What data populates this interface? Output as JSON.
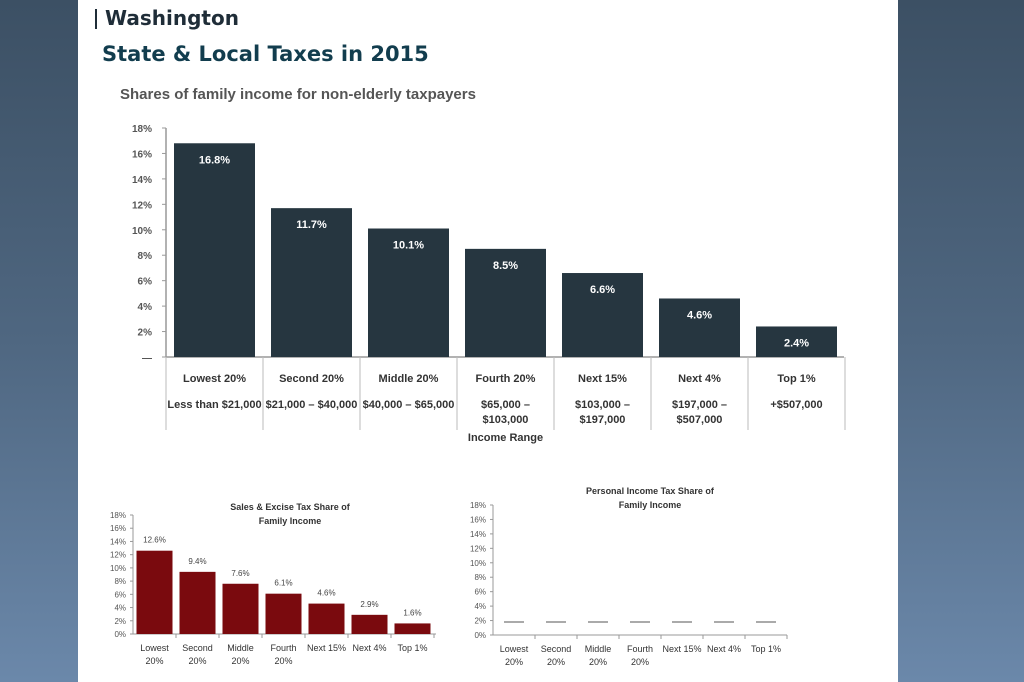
{
  "header": {
    "state": "Washington",
    "title": "State & Local Taxes in 2015"
  },
  "colors": {
    "main_bar": "#263640",
    "sales_bar": "#7a0a0e",
    "dash": "#555555",
    "axis": "#999999"
  },
  "chart_data": [
    {
      "type": "bar",
      "title": "Shares of family income for non-elderly taxpayers",
      "categories": [
        "Lowest 20%",
        "Second 20%",
        "Middle 20%",
        "Fourth 20%",
        "Next 15%",
        "Next 4%",
        "Top 1%"
      ],
      "income_ranges": [
        "Less than $21,000",
        "$21,000 – $40,000",
        "$40,000 – $65,000",
        "$65,000 – $103,000",
        "$103,000 – $197,000",
        "$197,000 – $507,000",
        "+$507,000"
      ],
      "income_range_label": "Income Range",
      "values": [
        16.8,
        11.7,
        10.1,
        8.5,
        6.6,
        4.6,
        2.4
      ],
      "data_labels": [
        "16.8%",
        "11.7%",
        "10.1%",
        "8.5%",
        "6.6%",
        "4.6%",
        "2.4%"
      ],
      "ylim": [
        0,
        18
      ],
      "yticks": [
        "—",
        "2%",
        "4%",
        "6%",
        "8%",
        "10%",
        "12%",
        "14%",
        "16%",
        "18%"
      ],
      "grid": false
    },
    {
      "type": "bar",
      "title": "Sales & Excise Tax Share of Family Income",
      "categories": [
        "Lowest 20%",
        "Second 20%",
        "Middle 20%",
        "Fourth 20%",
        "Next 15%",
        "Next 4%",
        "Top 1%"
      ],
      "values": [
        12.6,
        9.4,
        7.6,
        6.1,
        4.6,
        2.9,
        1.6
      ],
      "data_labels": [
        "12.6%",
        "9.4%",
        "7.6%",
        "6.1%",
        "4.6%",
        "2.9%",
        "1.6%"
      ],
      "ylim": [
        0,
        18
      ],
      "yticks": [
        "0%",
        "2%",
        "4%",
        "6%",
        "8%",
        "10%",
        "12%",
        "14%",
        "16%",
        "18%"
      ],
      "grid": false
    },
    {
      "type": "bar",
      "title": "Personal Income Tax Share of Family Income",
      "categories": [
        "Lowest 20%",
        "Second 20%",
        "Middle 20%",
        "Fourth 20%",
        "Next 15%",
        "Next 4%",
        "Top 1%"
      ],
      "values": [
        0,
        0,
        0,
        0,
        0,
        0,
        0
      ],
      "data_labels": [
        "—",
        "—",
        "—",
        "—",
        "—",
        "—",
        "—"
      ],
      "ylim": [
        0,
        18
      ],
      "yticks": [
        "0%",
        "2%",
        "4%",
        "6%",
        "8%",
        "10%",
        "12%",
        "14%",
        "16%",
        "18%"
      ],
      "grid": false
    }
  ]
}
